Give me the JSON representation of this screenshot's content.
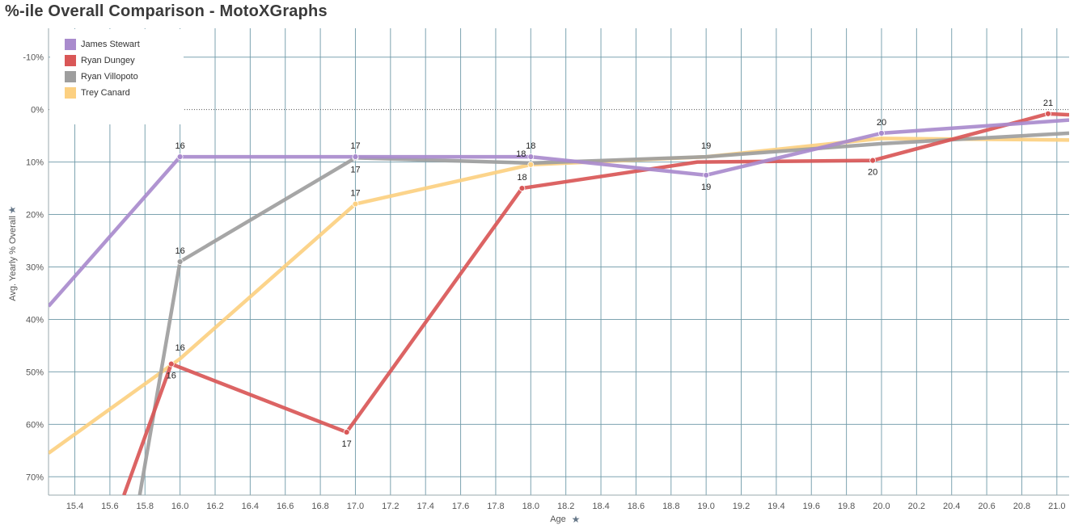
{
  "title": "%-ile Overall Comparison - MotoXGraphs",
  "chart_data": {
    "type": "line",
    "xlabel": "Age",
    "ylabel": "Avg. Yearly % Overall",
    "xlim": [
      15.25,
      21.07
    ],
    "ylim": [
      -15.5,
      73.5
    ],
    "y_reversed": true,
    "x_ticks": [
      "15.4",
      "15.6",
      "15.8",
      "16.0",
      "16.2",
      "16.4",
      "16.6",
      "16.8",
      "17.0",
      "17.2",
      "17.4",
      "17.6",
      "17.8",
      "18.0",
      "18.2",
      "18.4",
      "18.6",
      "18.8",
      "19.0",
      "19.2",
      "19.4",
      "19.6",
      "19.8",
      "20.0",
      "20.2",
      "20.4",
      "20.6",
      "20.8",
      "21.0"
    ],
    "y_ticks": [
      "-10%",
      "0%",
      "10%",
      "20%",
      "30%",
      "40%",
      "50%",
      "60%",
      "70%"
    ],
    "y_tick_values": [
      -10,
      0,
      10,
      20,
      30,
      40,
      50,
      60,
      70
    ],
    "grid": true,
    "zero_line": "dotted",
    "legend_position": "top-left",
    "series": [
      {
        "name": "James Stewart",
        "color": "#a98bcd",
        "points": [
          [
            15.25,
            37.5
          ],
          [
            16.0,
            9.0
          ],
          [
            17.0,
            9.0
          ],
          [
            18.0,
            9.0
          ],
          [
            19.0,
            12.5
          ],
          [
            20.0,
            4.5
          ],
          [
            21.07,
            2.0
          ]
        ],
        "markers": [
          [
            16.0,
            9.0
          ],
          [
            17.0,
            9.0
          ],
          [
            18.0,
            9.0
          ],
          [
            19.0,
            12.5
          ],
          [
            20.0,
            4.5
          ]
        ],
        "labels": [
          {
            "x": 16.0,
            "y": 9.0,
            "text": "16",
            "pos": "above"
          },
          {
            "x": 17.0,
            "y": 9.0,
            "text": "17",
            "pos": "above"
          },
          {
            "x": 18.0,
            "y": 9.0,
            "text": "18",
            "pos": "above"
          },
          {
            "x": 19.0,
            "y": 12.5,
            "text": "19",
            "pos": "below"
          },
          {
            "x": 20.0,
            "y": 4.5,
            "text": "20",
            "pos": "above"
          }
        ]
      },
      {
        "name": "Ryan Dungey",
        "color": "#d95757",
        "points": [
          [
            15.68,
            73.5
          ],
          [
            15.95,
            48.5
          ],
          [
            16.95,
            61.5
          ],
          [
            17.95,
            15.0
          ],
          [
            18.95,
            10.0
          ],
          [
            19.95,
            9.7
          ],
          [
            20.95,
            0.8
          ],
          [
            21.07,
            1.0
          ]
        ],
        "markers": [
          [
            15.95,
            48.5
          ],
          [
            16.95,
            61.5
          ],
          [
            17.95,
            15.0
          ],
          [
            19.95,
            9.7
          ],
          [
            20.95,
            0.8
          ]
        ],
        "labels": [
          {
            "x": 15.95,
            "y": 48.5,
            "text": "16",
            "pos": "below"
          },
          {
            "x": 16.95,
            "y": 61.5,
            "text": "17",
            "pos": "below"
          },
          {
            "x": 17.95,
            "y": 15.0,
            "text": "18",
            "pos": "above"
          },
          {
            "x": 19.95,
            "y": 9.7,
            "text": "20",
            "pos": "below"
          },
          {
            "x": 20.95,
            "y": 0.8,
            "text": "21",
            "pos": "above"
          }
        ]
      },
      {
        "name": "Ryan Villopoto",
        "color": "#9e9e9e",
        "points": [
          [
            15.77,
            73.5
          ],
          [
            16.0,
            29.0
          ],
          [
            17.0,
            9.2
          ],
          [
            18.0,
            10.2
          ],
          [
            19.0,
            9.0
          ],
          [
            20.0,
            6.5
          ],
          [
            21.07,
            4.5
          ]
        ],
        "markers": [
          [
            16.0,
            29.0
          ],
          [
            17.0,
            9.2
          ]
        ],
        "labels": [
          {
            "x": 16.0,
            "y": 29.0,
            "text": "16",
            "pos": "above"
          },
          {
            "x": 17.0,
            "y": 9.2,
            "text": "17",
            "pos": "below"
          },
          {
            "x": 19.0,
            "y": 9.0,
            "text": "19",
            "pos": "above"
          }
        ]
      },
      {
        "name": "Trey Canard",
        "color": "#fcd081",
        "points": [
          [
            15.25,
            65.5
          ],
          [
            16.0,
            47.5
          ],
          [
            17.0,
            18.0
          ],
          [
            18.0,
            10.5
          ],
          [
            19.0,
            9.0
          ],
          [
            20.0,
            5.5
          ],
          [
            21.07,
            5.8
          ]
        ],
        "markers": [
          [
            17.0,
            18.0
          ],
          [
            18.0,
            10.5
          ]
        ],
        "labels": [
          {
            "x": 16.0,
            "y": 47.5,
            "text": "16",
            "pos": "above"
          },
          {
            "x": 17.0,
            "y": 18.0,
            "text": "17",
            "pos": "above"
          },
          {
            "x": 18.0,
            "y": 10.5,
            "text": "18",
            "pos": "above-left"
          }
        ]
      }
    ]
  }
}
